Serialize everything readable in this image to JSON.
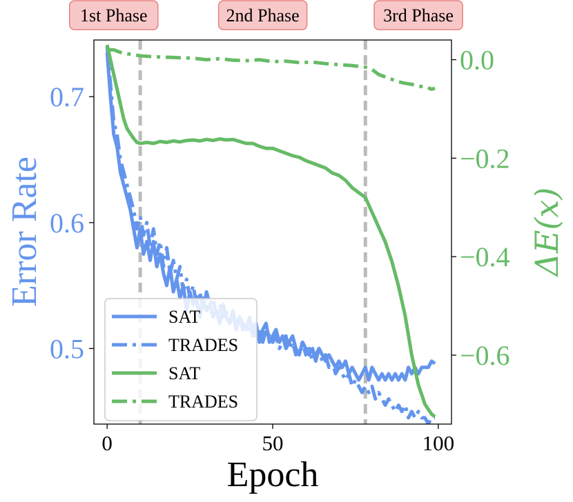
{
  "chart_data": {
    "type": "line",
    "xlabel": "Epoch",
    "ylabel_left": "Error Rate",
    "ylabel_right": "ΔE(x)",
    "xlim": [
      -4,
      104
    ],
    "ylim_left": [
      0.44,
      0.745
    ],
    "ylim_right": [
      -0.74,
      0.04
    ],
    "xticks": [
      0,
      50,
      100
    ],
    "yticks_left": [
      0.5,
      0.6,
      0.7
    ],
    "yticks_right": [
      0.0,
      -0.2,
      -0.4,
      -0.6
    ],
    "phase_lines": [
      10,
      78
    ],
    "phases": [
      {
        "label": "1st Phase",
        "x": 2
      },
      {
        "label": "2nd Phase",
        "x": 47
      },
      {
        "label": "3rd Phase",
        "x": 94
      }
    ],
    "colors": {
      "error": "#6495ed",
      "energy": "#66bb66",
      "phase_line": "#bbbbbb",
      "phase_box": "#f8c8c8",
      "phase_box_border": "#e88080"
    },
    "legend_position": "lower-left",
    "series": [
      {
        "name": "SAT",
        "axis": "left",
        "style": "solid",
        "color": "#6495ed",
        "x": [
          0,
          1,
          2,
          3,
          4,
          5,
          6,
          7,
          8,
          9,
          10,
          11,
          12,
          13,
          14,
          15,
          16,
          17,
          18,
          19,
          20,
          21,
          22,
          23,
          24,
          25,
          26,
          27,
          28,
          29,
          30,
          31,
          32,
          33,
          34,
          35,
          36,
          37,
          38,
          39,
          40,
          41,
          42,
          43,
          44,
          45,
          46,
          47,
          48,
          49,
          50,
          51,
          52,
          53,
          54,
          55,
          56,
          57,
          58,
          59,
          60,
          61,
          62,
          63,
          64,
          65,
          66,
          67,
          68,
          69,
          70,
          71,
          72,
          73,
          74,
          75,
          76,
          77,
          78,
          79,
          80,
          81,
          82,
          83,
          84,
          85,
          86,
          87,
          88,
          89,
          90,
          91,
          92,
          93,
          94,
          95,
          96,
          97,
          98,
          99
        ],
        "y": [
          0.735,
          0.7,
          0.67,
          0.66,
          0.64,
          0.63,
          0.62,
          0.61,
          0.595,
          0.58,
          0.595,
          0.575,
          0.585,
          0.57,
          0.585,
          0.565,
          0.575,
          0.56,
          0.55,
          0.565,
          0.545,
          0.555,
          0.54,
          0.55,
          0.53,
          0.545,
          0.535,
          0.54,
          0.525,
          0.54,
          0.53,
          0.535,
          0.525,
          0.53,
          0.52,
          0.535,
          0.525,
          0.52,
          0.53,
          0.515,
          0.525,
          0.52,
          0.515,
          0.525,
          0.51,
          0.52,
          0.505,
          0.515,
          0.52,
          0.505,
          0.51,
          0.515,
          0.505,
          0.51,
          0.5,
          0.505,
          0.51,
          0.5,
          0.495,
          0.505,
          0.5,
          0.495,
          0.5,
          0.49,
          0.5,
          0.495,
          0.49,
          0.495,
          0.49,
          0.485,
          0.49,
          0.485,
          0.49,
          0.48,
          0.485,
          0.48,
          0.475,
          0.48,
          0.485,
          0.475,
          0.485,
          0.48,
          0.475,
          0.48,
          0.475,
          0.48,
          0.475,
          0.48,
          0.475,
          0.48,
          0.475,
          0.485,
          0.48,
          0.485,
          0.48,
          0.485,
          0.485,
          0.485,
          0.49,
          0.488
        ]
      },
      {
        "name": "TRADES",
        "axis": "left",
        "style": "dashdot",
        "color": "#6495ed",
        "x": [
          0,
          1,
          2,
          3,
          4,
          5,
          6,
          7,
          8,
          9,
          10,
          11,
          12,
          13,
          14,
          15,
          16,
          17,
          18,
          19,
          20,
          21,
          22,
          23,
          24,
          25,
          26,
          27,
          28,
          29,
          30,
          31,
          32,
          33,
          34,
          35,
          36,
          37,
          38,
          39,
          40,
          41,
          42,
          43,
          44,
          45,
          46,
          47,
          48,
          49,
          50,
          51,
          52,
          53,
          54,
          55,
          56,
          57,
          58,
          59,
          60,
          61,
          62,
          63,
          64,
          65,
          66,
          67,
          68,
          69,
          70,
          71,
          72,
          73,
          74,
          75,
          76,
          77,
          78,
          79,
          80,
          81,
          82,
          83,
          84,
          85,
          86,
          87,
          88,
          89,
          90,
          91,
          92,
          93,
          94,
          95,
          96,
          97,
          98,
          99
        ],
        "y": [
          0.74,
          0.71,
          0.68,
          0.67,
          0.65,
          0.64,
          0.63,
          0.62,
          0.61,
          0.595,
          0.605,
          0.59,
          0.6,
          0.58,
          0.595,
          0.575,
          0.585,
          0.565,
          0.58,
          0.56,
          0.57,
          0.555,
          0.565,
          0.545,
          0.555,
          0.54,
          0.55,
          0.535,
          0.545,
          0.53,
          0.545,
          0.535,
          0.54,
          0.525,
          0.535,
          0.525,
          0.53,
          0.52,
          0.525,
          0.52,
          0.525,
          0.515,
          0.52,
          0.515,
          0.52,
          0.51,
          0.515,
          0.505,
          0.515,
          0.51,
          0.505,
          0.51,
          0.5,
          0.505,
          0.51,
          0.5,
          0.505,
          0.495,
          0.5,
          0.505,
          0.495,
          0.5,
          0.49,
          0.495,
          0.5,
          0.49,
          0.495,
          0.485,
          0.49,
          0.48,
          0.485,
          0.48,
          0.475,
          0.48,
          0.47,
          0.475,
          0.47,
          0.465,
          0.47,
          0.465,
          0.47,
          0.46,
          0.465,
          0.46,
          0.455,
          0.46,
          0.455,
          0.45,
          0.455,
          0.45,
          0.455,
          0.445,
          0.45,
          0.445,
          0.45,
          0.445,
          0.445,
          0.44,
          0.445,
          0.445
        ]
      },
      {
        "name": "SAT",
        "axis": "right",
        "style": "solid",
        "color": "#66bb66",
        "x": [
          0,
          1,
          2,
          3,
          4,
          5,
          6,
          7,
          8,
          9,
          10,
          12,
          14,
          16,
          18,
          20,
          22,
          24,
          26,
          28,
          30,
          32,
          34,
          36,
          38,
          40,
          42,
          44,
          46,
          48,
          50,
          52,
          54,
          56,
          58,
          60,
          62,
          64,
          66,
          68,
          70,
          72,
          74,
          76,
          78,
          80,
          82,
          84,
          86,
          88,
          90,
          92,
          94,
          96,
          98,
          99
        ],
        "y": [
          0.03,
          0.0,
          -0.03,
          -0.06,
          -0.09,
          -0.12,
          -0.14,
          -0.15,
          -0.16,
          -0.168,
          -0.17,
          -0.168,
          -0.17,
          -0.166,
          -0.168,
          -0.165,
          -0.167,
          -0.164,
          -0.163,
          -0.165,
          -0.162,
          -0.164,
          -0.161,
          -0.163,
          -0.162,
          -0.166,
          -0.17,
          -0.17,
          -0.176,
          -0.18,
          -0.18,
          -0.185,
          -0.19,
          -0.195,
          -0.198,
          -0.205,
          -0.21,
          -0.215,
          -0.22,
          -0.23,
          -0.235,
          -0.245,
          -0.26,
          -0.27,
          -0.28,
          -0.31,
          -0.34,
          -0.37,
          -0.41,
          -0.46,
          -0.52,
          -0.6,
          -0.66,
          -0.7,
          -0.72,
          -0.725
        ]
      },
      {
        "name": "TRADES",
        "axis": "right",
        "style": "dashdot",
        "color": "#66bb66",
        "x": [
          0,
          2,
          4,
          6,
          8,
          10,
          14,
          18,
          22,
          26,
          30,
          34,
          38,
          42,
          46,
          50,
          54,
          58,
          62,
          66,
          70,
          74,
          78,
          80,
          82,
          84,
          86,
          88,
          90,
          92,
          94,
          96,
          98,
          99
        ],
        "y": [
          0.02,
          0.02,
          0.015,
          0.012,
          0.01,
          0.008,
          0.006,
          0.005,
          0.004,
          0.003,
          0.0,
          0.002,
          -0.001,
          -0.002,
          0.0,
          -0.004,
          -0.003,
          -0.006,
          -0.005,
          -0.008,
          -0.01,
          -0.012,
          -0.015,
          -0.02,
          -0.03,
          -0.035,
          -0.04,
          -0.045,
          -0.048,
          -0.05,
          -0.054,
          -0.055,
          -0.06,
          -0.058
        ]
      }
    ]
  }
}
